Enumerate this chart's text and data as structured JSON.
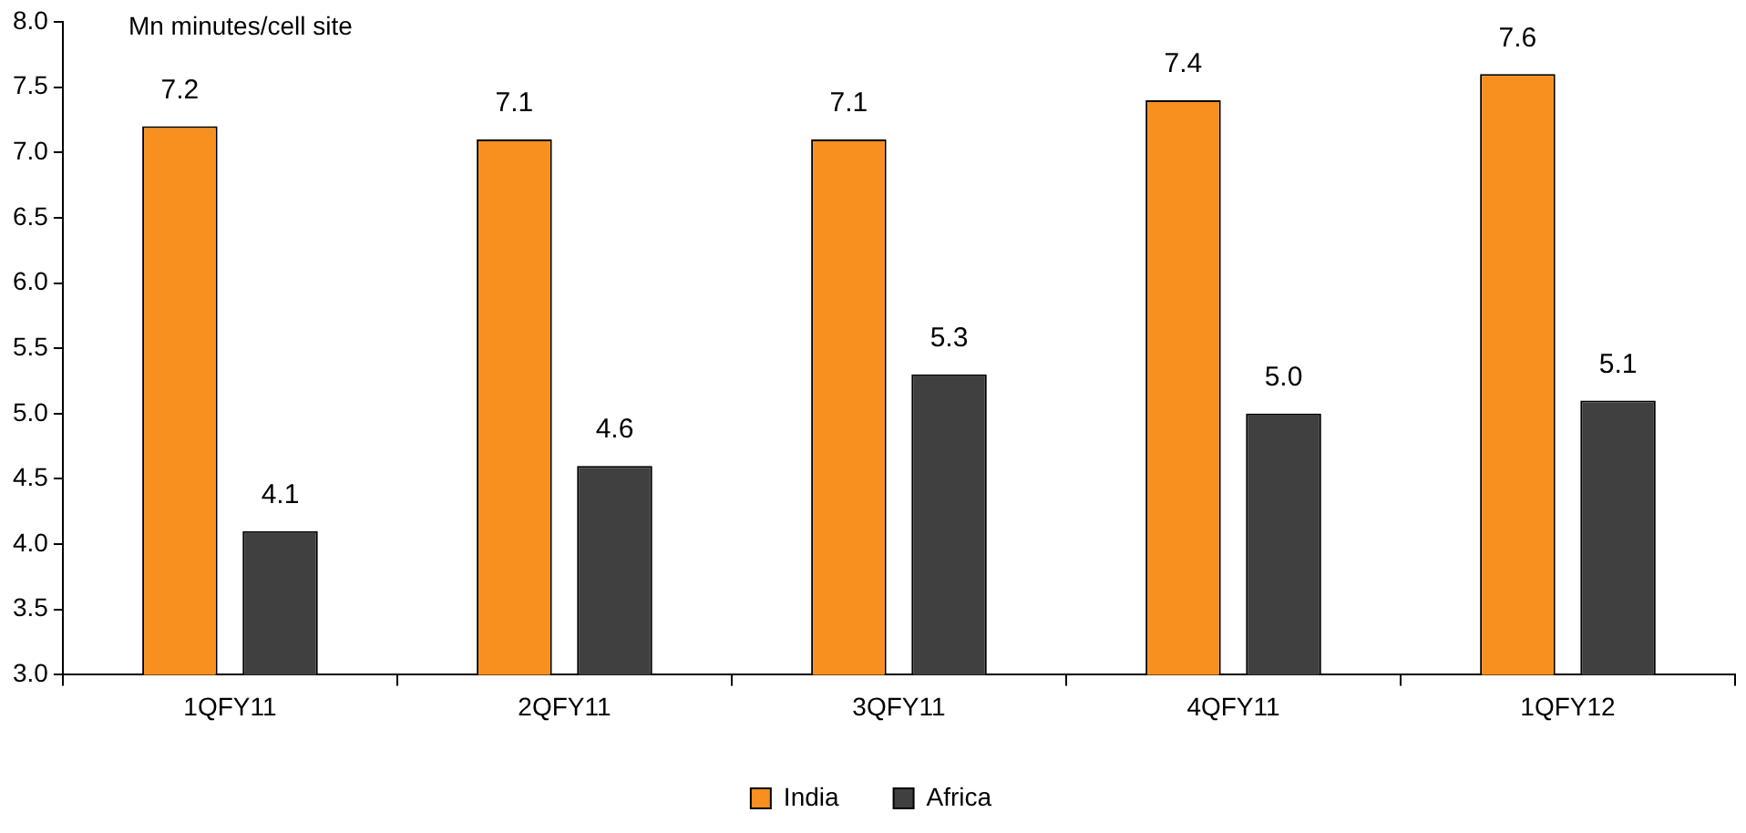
{
  "chart_data": {
    "type": "bar",
    "ylabel": "Mn minutes/cell site",
    "categories": [
      "1QFY11",
      "2QFY11",
      "3QFY11",
      "4QFY11",
      "1QFY12"
    ],
    "series": [
      {
        "name": "India",
        "color": "#f7901e",
        "values": [
          7.2,
          7.1,
          7.1,
          7.4,
          7.6
        ],
        "value_labels": [
          "7.2",
          "7.1",
          "7.1",
          "7.4",
          "7.6"
        ]
      },
      {
        "name": "Africa",
        "color": "#404040",
        "values": [
          4.1,
          4.6,
          5.3,
          5.0,
          5.1
        ],
        "value_labels": [
          "4.1",
          "4.6",
          "5.3",
          "5.0",
          "5.1"
        ]
      }
    ],
    "ylim": [
      3,
      8
    ],
    "yticks": [
      {
        "value": 3,
        "label": "3.0"
      },
      {
        "value": 3.5,
        "label": "3.5"
      },
      {
        "value": 4,
        "label": "4.0"
      },
      {
        "value": 4.5,
        "label": "4.5"
      },
      {
        "value": 5,
        "label": "5.0"
      },
      {
        "value": 5.5,
        "label": "5.5"
      },
      {
        "value": 6,
        "label": "6.0"
      },
      {
        "value": 6.5,
        "label": "6.5"
      },
      {
        "value": 7,
        "label": "7.0"
      },
      {
        "value": 7.5,
        "label": "7.5"
      },
      {
        "value": 8,
        "label": "8.0"
      }
    ],
    "grid": false,
    "legend": "bottom"
  }
}
